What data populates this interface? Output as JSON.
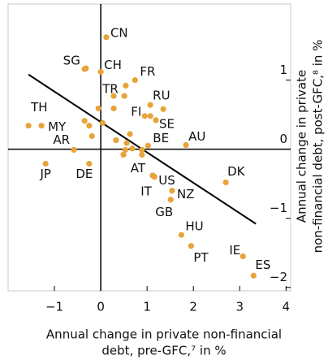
{
  "chart_data": {
    "type": "scatter",
    "x_label": [
      "Annual change in private non-financial",
      "debt, pre-GFC,⁷ in %"
    ],
    "y_label": [
      "Annual change in private",
      "non-financial debt, post-GFC,⁸ in %"
    ],
    "xlim": [
      -2,
      4.1
    ],
    "ylim": [
      -2.05,
      2.1
    ],
    "xticks": [
      {
        "value": -1,
        "label": "−1"
      },
      0,
      1,
      2,
      3,
      4
    ],
    "yticks": [
      {
        "value": -2,
        "label": "−2"
      },
      {
        "value": -1,
        "label": "−1"
      },
      0,
      1
    ],
    "color": "#e8a33a",
    "series": [
      {
        "x": [
          0.12,
          -0.32,
          -0.35,
          0,
          0.74,
          0.54,
          0.51,
          0.28,
          1.07,
          1.35,
          1.07,
          0.95,
          1.19,
          -1.56,
          -1.28,
          -0.05,
          0.28,
          -0.35,
          -0.25,
          -0.19,
          0.04,
          1.84,
          1.02,
          0.63,
          0.33,
          0.56,
          -0.58,
          0.53,
          0.68,
          0.49,
          0.89,
          0.89,
          -1.19,
          -0.25,
          2.7,
          1.16,
          1.12,
          1.54,
          1.51,
          1.74,
          1.95,
          3.07,
          3.3
        ],
        "y": [
          1.62,
          1.17,
          1.16,
          1.12,
          1.0,
          0.92,
          0.77,
          0.77,
          0.64,
          0.58,
          0.48,
          0.48,
          0.42,
          0.34,
          0.34,
          0.59,
          0.59,
          0.41,
          0.34,
          0.19,
          0.38,
          0.06,
          0.05,
          0.22,
          0.13,
          0.09,
          -0.01,
          -0.01,
          0.01,
          -0.08,
          -0.01,
          -0.08,
          -0.21,
          -0.21,
          -0.48,
          -0.4,
          -0.38,
          -0.6,
          -0.73,
          -1.24,
          -1.4,
          -1.55,
          -1.83
        ],
        "labels": [
          "CN",
          "SG",
          null,
          "CH",
          "FR",
          null,
          null,
          "TR",
          "RU",
          null,
          null,
          "FI",
          "SE",
          "TH",
          "MY",
          null,
          null,
          null,
          null,
          null,
          null,
          "AU",
          "BE",
          null,
          null,
          null,
          "AR",
          null,
          null,
          null,
          null,
          "AT",
          "JP",
          "DE",
          "DK",
          "US",
          "IT",
          "NZ",
          "GB",
          "HU",
          "PT",
          "IE",
          "ES"
        ]
      }
    ],
    "fit_line": {
      "x": [
        -1.56,
        3.35
      ],
      "y": [
        1.08,
        -1.08
      ],
      "color": "#000000"
    }
  }
}
